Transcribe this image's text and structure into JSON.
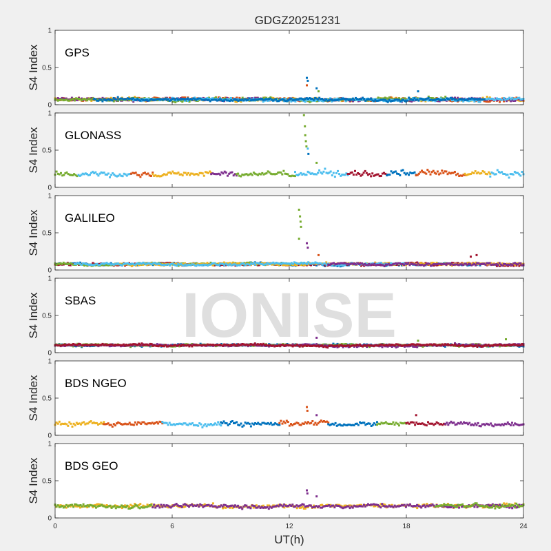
{
  "watermark": "IONISE",
  "chart_data": {
    "type": "scatter",
    "title": "GDGZ20251231",
    "xlabel": "UT(h)",
    "ylabel": "S4 Index",
    "xlim": [
      0,
      24
    ],
    "ylim": [
      0,
      1
    ],
    "xticks": [
      "0",
      "6",
      "12",
      "18",
      "24"
    ],
    "yticks": [
      "0",
      "0.5",
      "1"
    ],
    "grid": false,
    "panels": [
      {
        "name": "GPS",
        "baseline": 0.07,
        "noise": 0.025,
        "segments": [
          {
            "color": "#EDB120",
            "start": 0,
            "end": 24
          },
          {
            "color": "#D95319",
            "start": 0,
            "end": 24
          },
          {
            "color": "#7E2F8E",
            "start": 0,
            "end": 24
          },
          {
            "color": "#77AC30",
            "start": 0,
            "end": 20
          },
          {
            "color": "#4DBEEE",
            "start": 4,
            "end": 24
          },
          {
            "color": "#0072BD",
            "start": 2,
            "end": 22
          }
        ],
        "spikes": [
          {
            "x": 12.9,
            "y": 0.36,
            "color": "#0072BD"
          },
          {
            "x": 12.95,
            "y": 0.32,
            "color": "#0072BD"
          },
          {
            "x": 12.9,
            "y": 0.26,
            "color": "#D95319"
          },
          {
            "x": 13.4,
            "y": 0.22,
            "color": "#0072BD"
          },
          {
            "x": 13.5,
            "y": 0.18,
            "color": "#77AC30"
          },
          {
            "x": 18.6,
            "y": 0.18,
            "color": "#0072BD"
          }
        ]
      },
      {
        "name": "GLONASS",
        "baseline": 0.18,
        "noise": 0.045,
        "segments": [
          {
            "color": "#77AC30",
            "start": 0,
            "end": 1.2
          },
          {
            "color": "#4DBEEE",
            "start": 1.2,
            "end": 3.9
          },
          {
            "color": "#D95319",
            "start": 3.9,
            "end": 5.0
          },
          {
            "color": "#EDB120",
            "start": 5.0,
            "end": 8.0
          },
          {
            "color": "#7E2F8E",
            "start": 8.0,
            "end": 9.3
          },
          {
            "color": "#77AC30",
            "start": 9.3,
            "end": 12.3
          },
          {
            "color": "#4DBEEE",
            "start": 12.3,
            "end": 15.0
          },
          {
            "color": "#A2142F",
            "start": 15.0,
            "end": 17.0
          },
          {
            "color": "#0072BD",
            "start": 17.0,
            "end": 18.5
          },
          {
            "color": "#D95319",
            "start": 18.5,
            "end": 21.0
          },
          {
            "color": "#EDB120",
            "start": 21.0,
            "end": 22.3
          },
          {
            "color": "#4DBEEE",
            "start": 22.3,
            "end": 24
          }
        ],
        "spikes": [
          {
            "x": 12.75,
            "y": 0.97,
            "color": "#77AC30"
          },
          {
            "x": 12.8,
            "y": 0.82,
            "color": "#77AC30"
          },
          {
            "x": 12.82,
            "y": 0.7,
            "color": "#77AC30"
          },
          {
            "x": 12.85,
            "y": 0.62,
            "color": "#77AC30"
          },
          {
            "x": 12.88,
            "y": 0.55,
            "color": "#77AC30"
          },
          {
            "x": 12.95,
            "y": 0.52,
            "color": "#4DBEEE"
          },
          {
            "x": 12.98,
            "y": 0.45,
            "color": "#0072BD"
          },
          {
            "x": 13.4,
            "y": 0.33,
            "color": "#77AC30"
          }
        ]
      },
      {
        "name": "GALILEO",
        "baseline": 0.08,
        "noise": 0.02,
        "segments": [
          {
            "color": "#0072BD",
            "start": 0,
            "end": 24
          },
          {
            "color": "#A2142F",
            "start": 0,
            "end": 24
          },
          {
            "color": "#77AC30",
            "start": 0,
            "end": 13
          },
          {
            "color": "#EDB120",
            "start": 3,
            "end": 24
          },
          {
            "color": "#4DBEEE",
            "start": 1,
            "end": 18
          },
          {
            "color": "#7E2F8E",
            "start": 14,
            "end": 24
          }
        ],
        "spikes": [
          {
            "x": 12.5,
            "y": 0.81,
            "color": "#77AC30"
          },
          {
            "x": 12.55,
            "y": 0.72,
            "color": "#77AC30"
          },
          {
            "x": 12.58,
            "y": 0.65,
            "color": "#77AC30"
          },
          {
            "x": 12.6,
            "y": 0.58,
            "color": "#77AC30"
          },
          {
            "x": 12.5,
            "y": 0.42,
            "color": "#77AC30"
          },
          {
            "x": 12.9,
            "y": 0.36,
            "color": "#7E2F8E"
          },
          {
            "x": 12.95,
            "y": 0.3,
            "color": "#7E2F8E"
          },
          {
            "x": 13.5,
            "y": 0.2,
            "color": "#D95319"
          },
          {
            "x": 21.3,
            "y": 0.18,
            "color": "#A2142F"
          },
          {
            "x": 21.6,
            "y": 0.2,
            "color": "#A2142F"
          }
        ]
      },
      {
        "name": "SBAS",
        "baseline": 0.1,
        "noise": 0.018,
        "segments": [
          {
            "color": "#0072BD",
            "start": 0,
            "end": 24
          },
          {
            "color": "#77AC30",
            "start": 0,
            "end": 24
          },
          {
            "color": "#7E2F8E",
            "start": 0,
            "end": 24
          },
          {
            "color": "#A2142F",
            "start": 0,
            "end": 24
          }
        ],
        "spikes": [
          {
            "x": 13.4,
            "y": 0.2,
            "color": "#7E2F8E"
          },
          {
            "x": 23.1,
            "y": 0.18,
            "color": "#77AC30"
          },
          {
            "x": 18.6,
            "y": 0.16,
            "color": "#77AC30"
          }
        ]
      },
      {
        "name": "BDS NGEO",
        "baseline": 0.16,
        "noise": 0.035,
        "segments": [
          {
            "color": "#EDB120",
            "start": 0,
            "end": 2.5
          },
          {
            "color": "#D95319",
            "start": 2.5,
            "end": 5.5
          },
          {
            "color": "#4DBEEE",
            "start": 5.5,
            "end": 8.5
          },
          {
            "color": "#0072BD",
            "start": 8.5,
            "end": 11.5
          },
          {
            "color": "#D95319",
            "start": 11.5,
            "end": 14.0
          },
          {
            "color": "#0072BD",
            "start": 14.0,
            "end": 16.5
          },
          {
            "color": "#77AC30",
            "start": 16.5,
            "end": 18.0
          },
          {
            "color": "#A2142F",
            "start": 18.0,
            "end": 20.0
          },
          {
            "color": "#7E2F8E",
            "start": 20.0,
            "end": 24
          }
        ],
        "spikes": [
          {
            "x": 12.9,
            "y": 0.38,
            "color": "#D95319"
          },
          {
            "x": 12.93,
            "y": 0.33,
            "color": "#D95319"
          },
          {
            "x": 13.4,
            "y": 0.27,
            "color": "#7E2F8E"
          },
          {
            "x": 18.5,
            "y": 0.27,
            "color": "#A2142F"
          }
        ]
      },
      {
        "name": "BDS GEO",
        "baseline": 0.16,
        "noise": 0.03,
        "segments": [
          {
            "color": "#EDB120",
            "start": 0,
            "end": 24
          },
          {
            "color": "#77AC30",
            "start": 0,
            "end": 5
          },
          {
            "color": "#7E2F8E",
            "start": 5,
            "end": 24
          },
          {
            "color": "#77AC30",
            "start": 19.5,
            "end": 24
          }
        ],
        "spikes": [
          {
            "x": 12.9,
            "y": 0.37,
            "color": "#7E2F8E"
          },
          {
            "x": 12.93,
            "y": 0.33,
            "color": "#7E2F8E"
          },
          {
            "x": 13.4,
            "y": 0.29,
            "color": "#7E2F8E"
          }
        ]
      }
    ]
  }
}
